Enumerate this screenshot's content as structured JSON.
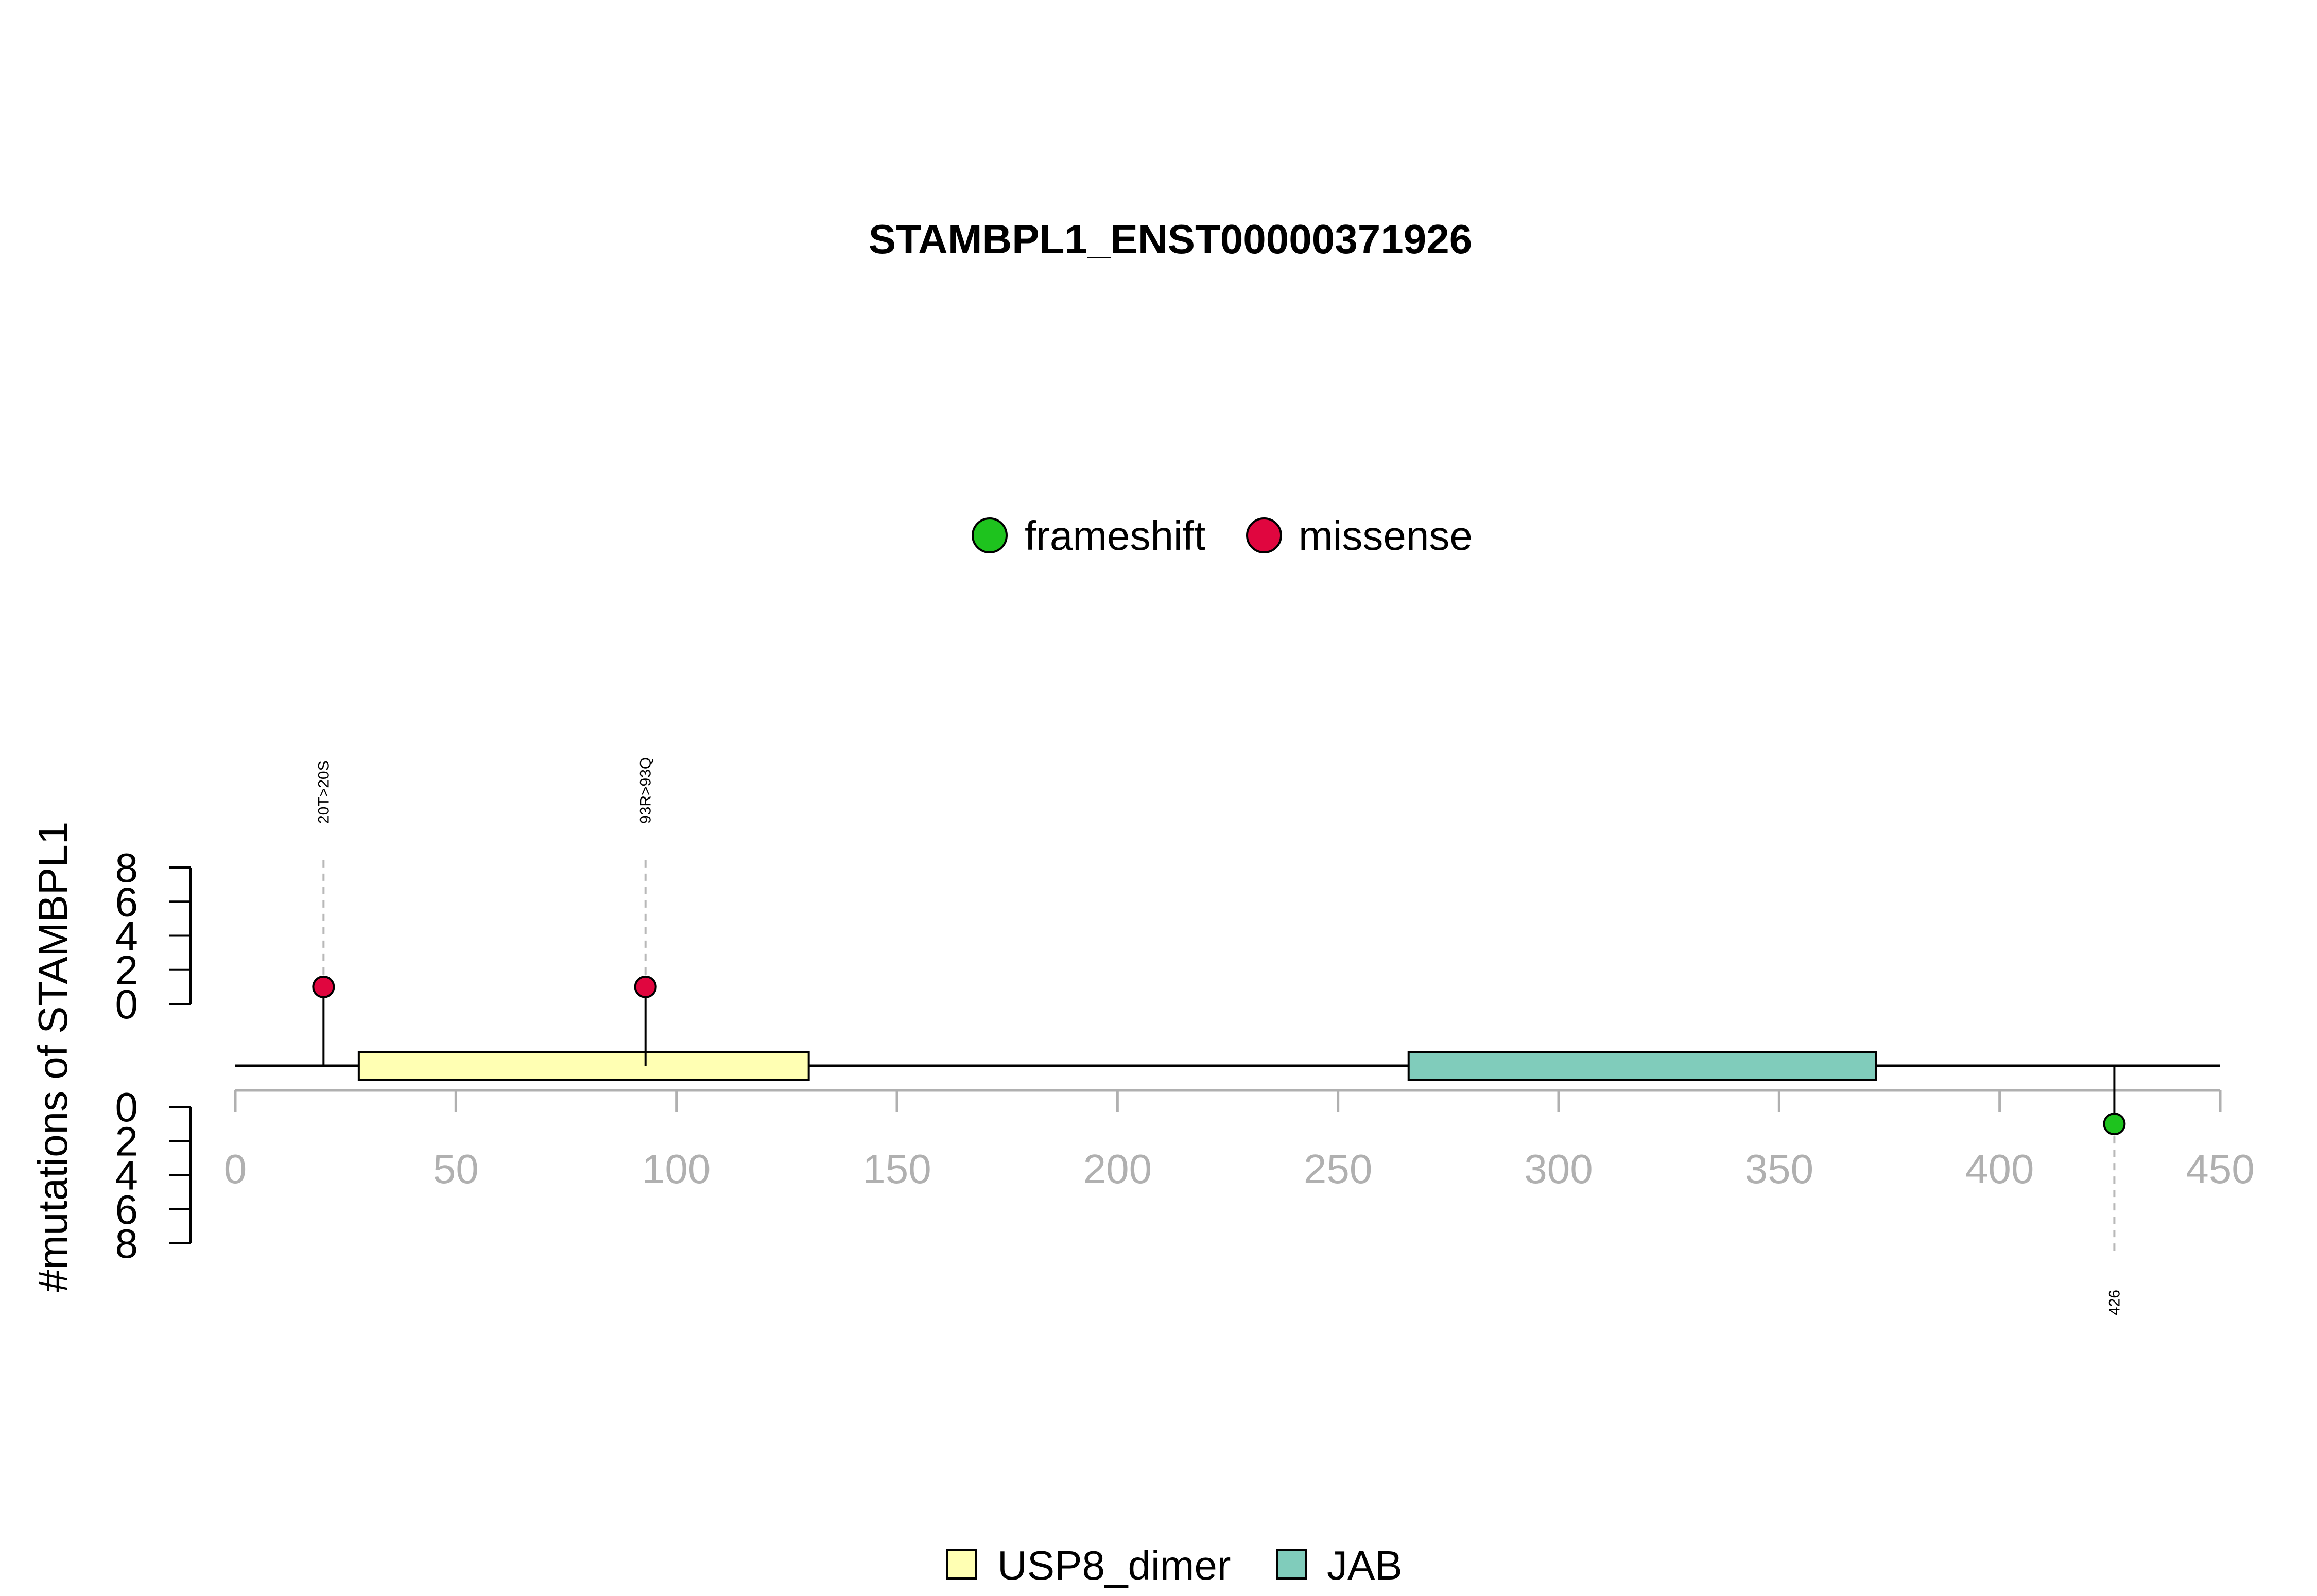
{
  "chart_data": {
    "type": "lollipop",
    "title": "STAMBPL1_ENST00000371926",
    "ylabel": "#mutations of STAMBPL1",
    "xlim": [
      0,
      450
    ],
    "x_ticks": [
      0,
      50,
      100,
      150,
      200,
      250,
      300,
      350,
      400,
      450
    ],
    "protein_length": 450,
    "y_ticks": [
      0,
      2,
      4,
      6,
      8
    ],
    "ylim": [
      0,
      8
    ],
    "legend_mutation_types": [
      {
        "name": "frameshift",
        "color": "#1ec31e"
      },
      {
        "name": "missense",
        "color": "#e0063f"
      }
    ],
    "legend_domains": [
      {
        "name": "USP8_dimer",
        "color": "#ffffb3"
      },
      {
        "name": "JAB",
        "color": "#80ccbb"
      }
    ],
    "domains": [
      {
        "name": "USP8_dimer",
        "start": 28,
        "end": 130,
        "color": "#ffffb3"
      },
      {
        "name": "JAB",
        "start": 266,
        "end": 372,
        "color": "#80ccbb"
      }
    ],
    "mutations": [
      {
        "position": 20,
        "label": "20T>20S",
        "type": "missense",
        "count": 1,
        "side": "top"
      },
      {
        "position": 93,
        "label": "93R>93Q",
        "type": "missense",
        "count": 1,
        "side": "top"
      },
      {
        "position": 426,
        "label": "426",
        "type": "frameshift",
        "count": 1,
        "side": "bottom"
      }
    ]
  }
}
